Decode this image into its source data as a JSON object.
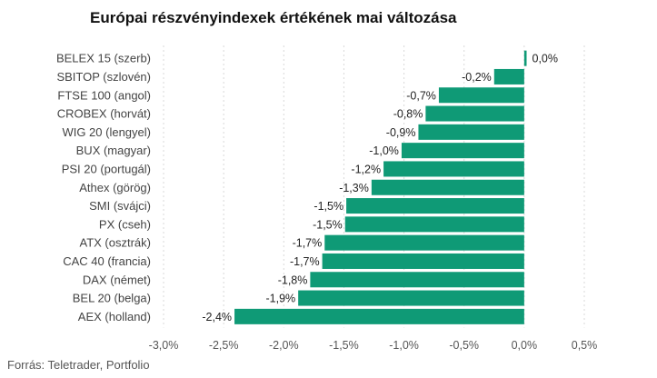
{
  "chart_data": {
    "type": "bar",
    "orientation": "horizontal",
    "title": "Európai részvényindexek értékének mai változása",
    "categories": [
      "BELEX 15 (szerb)",
      "SBITOP (szlovén)",
      "FTSE 100 (angol)",
      "CROBEX (horvát)",
      "WIG 20 (lengyel)",
      "BUX (magyar)",
      "PSI 20 (portugál)",
      "Athex (görög)",
      "SMI (svájci)",
      "PX (cseh)",
      "ATX (osztrák)",
      "CAC 40 (francia)",
      "DAX (német)",
      "BEL 20 (belga)",
      "AEX (holland)"
    ],
    "values": [
      0.02,
      -0.25,
      -0.71,
      -0.82,
      -0.88,
      -1.02,
      -1.17,
      -1.27,
      -1.48,
      -1.49,
      -1.66,
      -1.68,
      -1.78,
      -1.88,
      -2.41
    ],
    "value_labels": [
      "0,0%",
      "-0,2%",
      "-0,7%",
      "-0,8%",
      "-0,9%",
      "-1,0%",
      "-1,2%",
      "-1,3%",
      "-1,5%",
      "-1,5%",
      "-1,7%",
      "-1,7%",
      "-1,8%",
      "-1,9%",
      "-2,4%"
    ],
    "xlim": [
      -3.0,
      0.5
    ],
    "xticks": [
      -3.0,
      -2.5,
      -2.0,
      -1.5,
      -1.0,
      -0.5,
      0.0,
      0.5
    ],
    "xtick_labels": [
      "-3,0%",
      "-2,5%",
      "-2,0%",
      "-1,5%",
      "-1,0%",
      "-0,5%",
      "0,0%",
      "0,5%"
    ],
    "grid": true,
    "bar_color": "#0f9a76",
    "source": "Forrás: Teletrader, Portfolio"
  }
}
